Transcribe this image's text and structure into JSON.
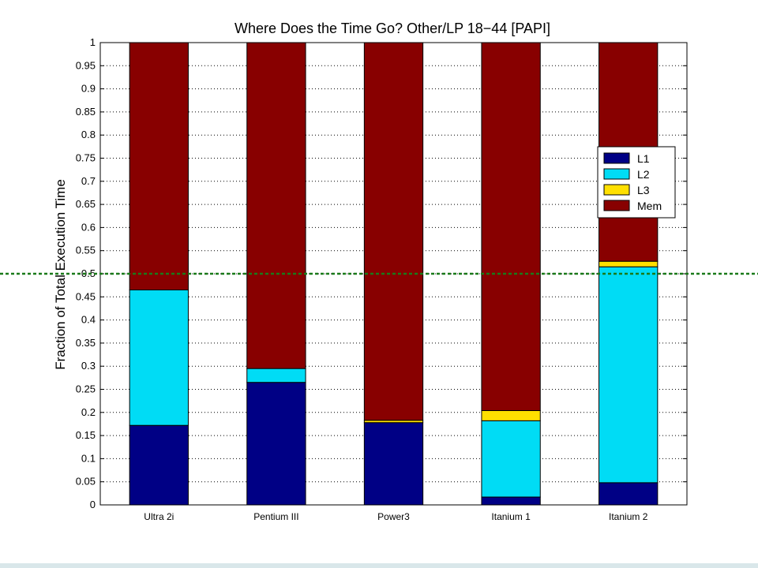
{
  "chart_data": {
    "type": "bar",
    "stacked": true,
    "title": "Where Does the Time Go? Other/LP 18−44 [PAPI]",
    "xlabel": "",
    "ylabel": "Fraction of Total Execution Time",
    "ylim": [
      0,
      1
    ],
    "yticks": [
      "0",
      "0.05",
      "0.1",
      "0.15",
      "0.2",
      "0.25",
      "0.3",
      "0.35",
      "0.4",
      "0.45",
      "0.5",
      "0.55",
      "0.6",
      "0.65",
      "0.7",
      "0.75",
      "0.8",
      "0.85",
      "0.9",
      "0.95",
      "1"
    ],
    "grid": "dotted horizontal",
    "legend_position": "right",
    "categories": [
      "Ultra 2i",
      "Pentium III",
      "Power3",
      "Itanium 1",
      "Itanium 2"
    ],
    "series": [
      {
        "name": "L1",
        "color": "#000085",
        "values": [
          0.172,
          0.265,
          0.178,
          0.017,
          0.048
        ]
      },
      {
        "name": "L2",
        "color": "#00dcf5",
        "values": [
          0.293,
          0.03,
          0.0,
          0.165,
          0.467
        ]
      },
      {
        "name": "L3",
        "color": "#ffe000",
        "values": [
          0.0,
          0.0,
          0.005,
          0.022,
          0.012
        ]
      },
      {
        "name": "Mem",
        "color": "#880000",
        "values": [
          0.535,
          0.705,
          0.817,
          0.796,
          0.473
        ]
      }
    ],
    "reference_line": {
      "value": 0.5,
      "style": "dotted",
      "color": "#1a7a1a"
    }
  }
}
